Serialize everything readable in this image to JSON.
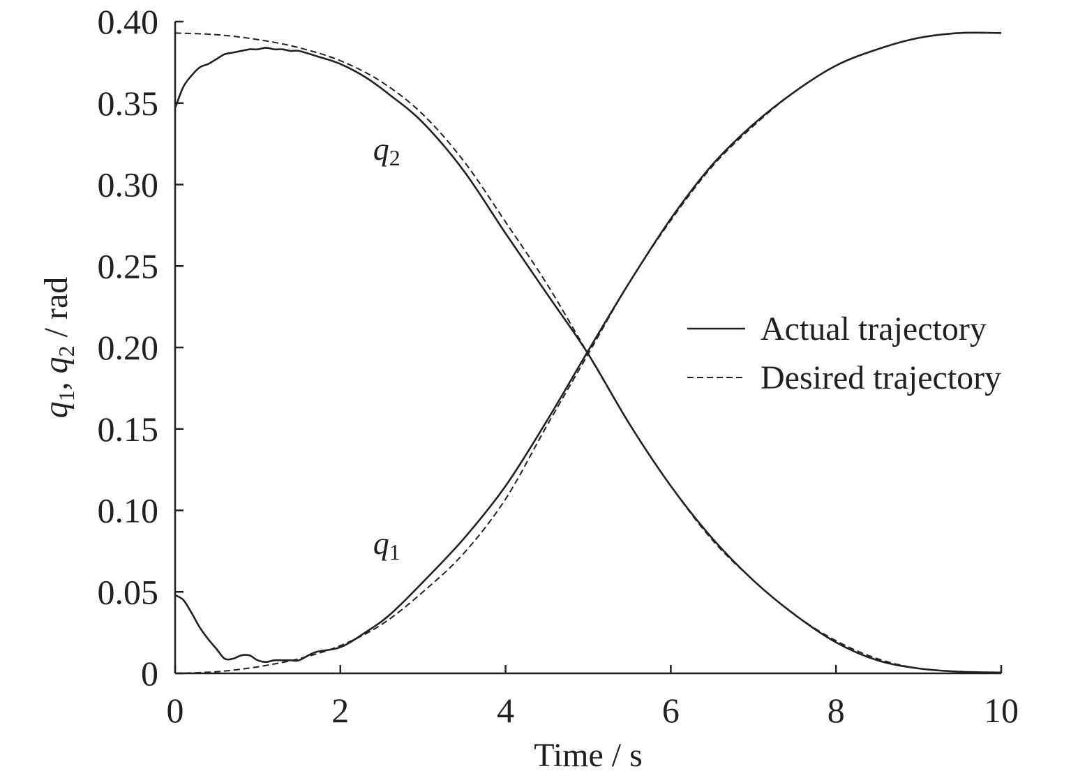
{
  "chart_data": {
    "type": "line",
    "title": "",
    "xlabel": "Time / s",
    "ylabel": {
      "q1": "q",
      "q1_sub": "1",
      "sep": ", ",
      "q2": "q",
      "q2_sub": "2",
      "unit": " / rad"
    },
    "xlim": [
      0,
      10
    ],
    "ylim": [
      0,
      0.4
    ],
    "x_ticks": [
      0,
      2,
      4,
      6,
      8,
      10
    ],
    "x_tick_labels": [
      "0",
      "2",
      "4",
      "6",
      "8",
      "10"
    ],
    "y_ticks": [
      0,
      0.05,
      0.1,
      0.15,
      0.2,
      0.25,
      0.3,
      0.35,
      0.4
    ],
    "y_tick_labels": [
      "0",
      "0.05",
      "0.10",
      "0.15",
      "0.20",
      "0.25",
      "0.30",
      "0.35",
      "0.40"
    ],
    "grid": false,
    "legend": {
      "position": "right",
      "entries": [
        {
          "label": "Actual trajectory",
          "style": "solid"
        },
        {
          "label": "Desired trajectory",
          "style": "dashed"
        }
      ]
    },
    "annotations": [
      {
        "text": "q",
        "sub": "2",
        "x": 2.65,
        "y": 0.322
      },
      {
        "text": "q",
        "sub": "1",
        "x": 2.65,
        "y": 0.08
      }
    ],
    "series": [
      {
        "legend": "Desired trajectory",
        "curve": "q1",
        "style": "dashed",
        "x": [
          0,
          0.5,
          1,
          1.5,
          2,
          2.5,
          3,
          3.5,
          4,
          4.5,
          5,
          5.5,
          6,
          6.5,
          7,
          7.5,
          8,
          8.5,
          9,
          9.5,
          10
        ],
        "y": [
          0,
          0.001,
          0.004,
          0.009,
          0.017,
          0.03,
          0.05,
          0.074,
          0.107,
          0.152,
          0.196,
          0.24,
          0.278,
          0.311,
          0.336,
          0.357,
          0.373,
          0.383,
          0.39,
          0.393,
          0.393
        ]
      },
      {
        "legend": "Actual trajectory",
        "curve": "q1",
        "style": "solid",
        "x": [
          0,
          0.1,
          0.2,
          0.3,
          0.4,
          0.5,
          0.6,
          0.7,
          0.8,
          0.9,
          1.0,
          1.1,
          1.2,
          1.3,
          1.4,
          1.5,
          1.7,
          2.0,
          2.3,
          2.6,
          3.0,
          3.5,
          4.0,
          4.5,
          5.0,
          5.5,
          6.0,
          6.5,
          7.0,
          7.5,
          8.0,
          8.5,
          9.0,
          9.5,
          10.0
        ],
        "y": [
          0.048,
          0.045,
          0.037,
          0.028,
          0.021,
          0.015,
          0.009,
          0.009,
          0.011,
          0.011,
          0.008,
          0.007,
          0.008,
          0.008,
          0.008,
          0.008,
          0.013,
          0.016,
          0.025,
          0.036,
          0.056,
          0.083,
          0.115,
          0.155,
          0.198,
          0.24,
          0.279,
          0.312,
          0.337,
          0.357,
          0.373,
          0.383,
          0.39,
          0.393,
          0.393
        ]
      },
      {
        "legend": "Desired trajectory",
        "curve": "q2",
        "style": "dashed",
        "x": [
          0,
          0.5,
          1,
          1.5,
          2,
          2.5,
          3,
          3.5,
          4,
          4.5,
          5,
          5.5,
          6,
          6.5,
          7,
          7.5,
          8,
          8.5,
          9,
          9.5,
          10
        ],
        "y": [
          0.393,
          0.392,
          0.389,
          0.384,
          0.376,
          0.363,
          0.343,
          0.314,
          0.277,
          0.239,
          0.196,
          0.153,
          0.115,
          0.082,
          0.057,
          0.036,
          0.02,
          0.009,
          0.003,
          0.001,
          0
        ]
      },
      {
        "legend": "Actual trajectory",
        "curve": "q2",
        "style": "solid",
        "x": [
          0,
          0.1,
          0.2,
          0.3,
          0.4,
          0.5,
          0.6,
          0.7,
          0.8,
          0.9,
          1.0,
          1.1,
          1.2,
          1.3,
          1.4,
          1.5,
          1.7,
          2.0,
          2.3,
          2.6,
          3.0,
          3.5,
          4.0,
          4.5,
          5.0,
          5.5,
          6.0,
          6.5,
          7.0,
          7.5,
          8.0,
          8.5,
          9.0,
          9.5,
          10.0
        ],
        "y": [
          0.347,
          0.36,
          0.367,
          0.372,
          0.374,
          0.377,
          0.38,
          0.381,
          0.382,
          0.383,
          0.383,
          0.384,
          0.383,
          0.383,
          0.382,
          0.382,
          0.379,
          0.374,
          0.366,
          0.355,
          0.338,
          0.308,
          0.27,
          0.233,
          0.196,
          0.153,
          0.115,
          0.083,
          0.057,
          0.036,
          0.019,
          0.008,
          0.003,
          0.001,
          0.0005
        ]
      }
    ]
  }
}
